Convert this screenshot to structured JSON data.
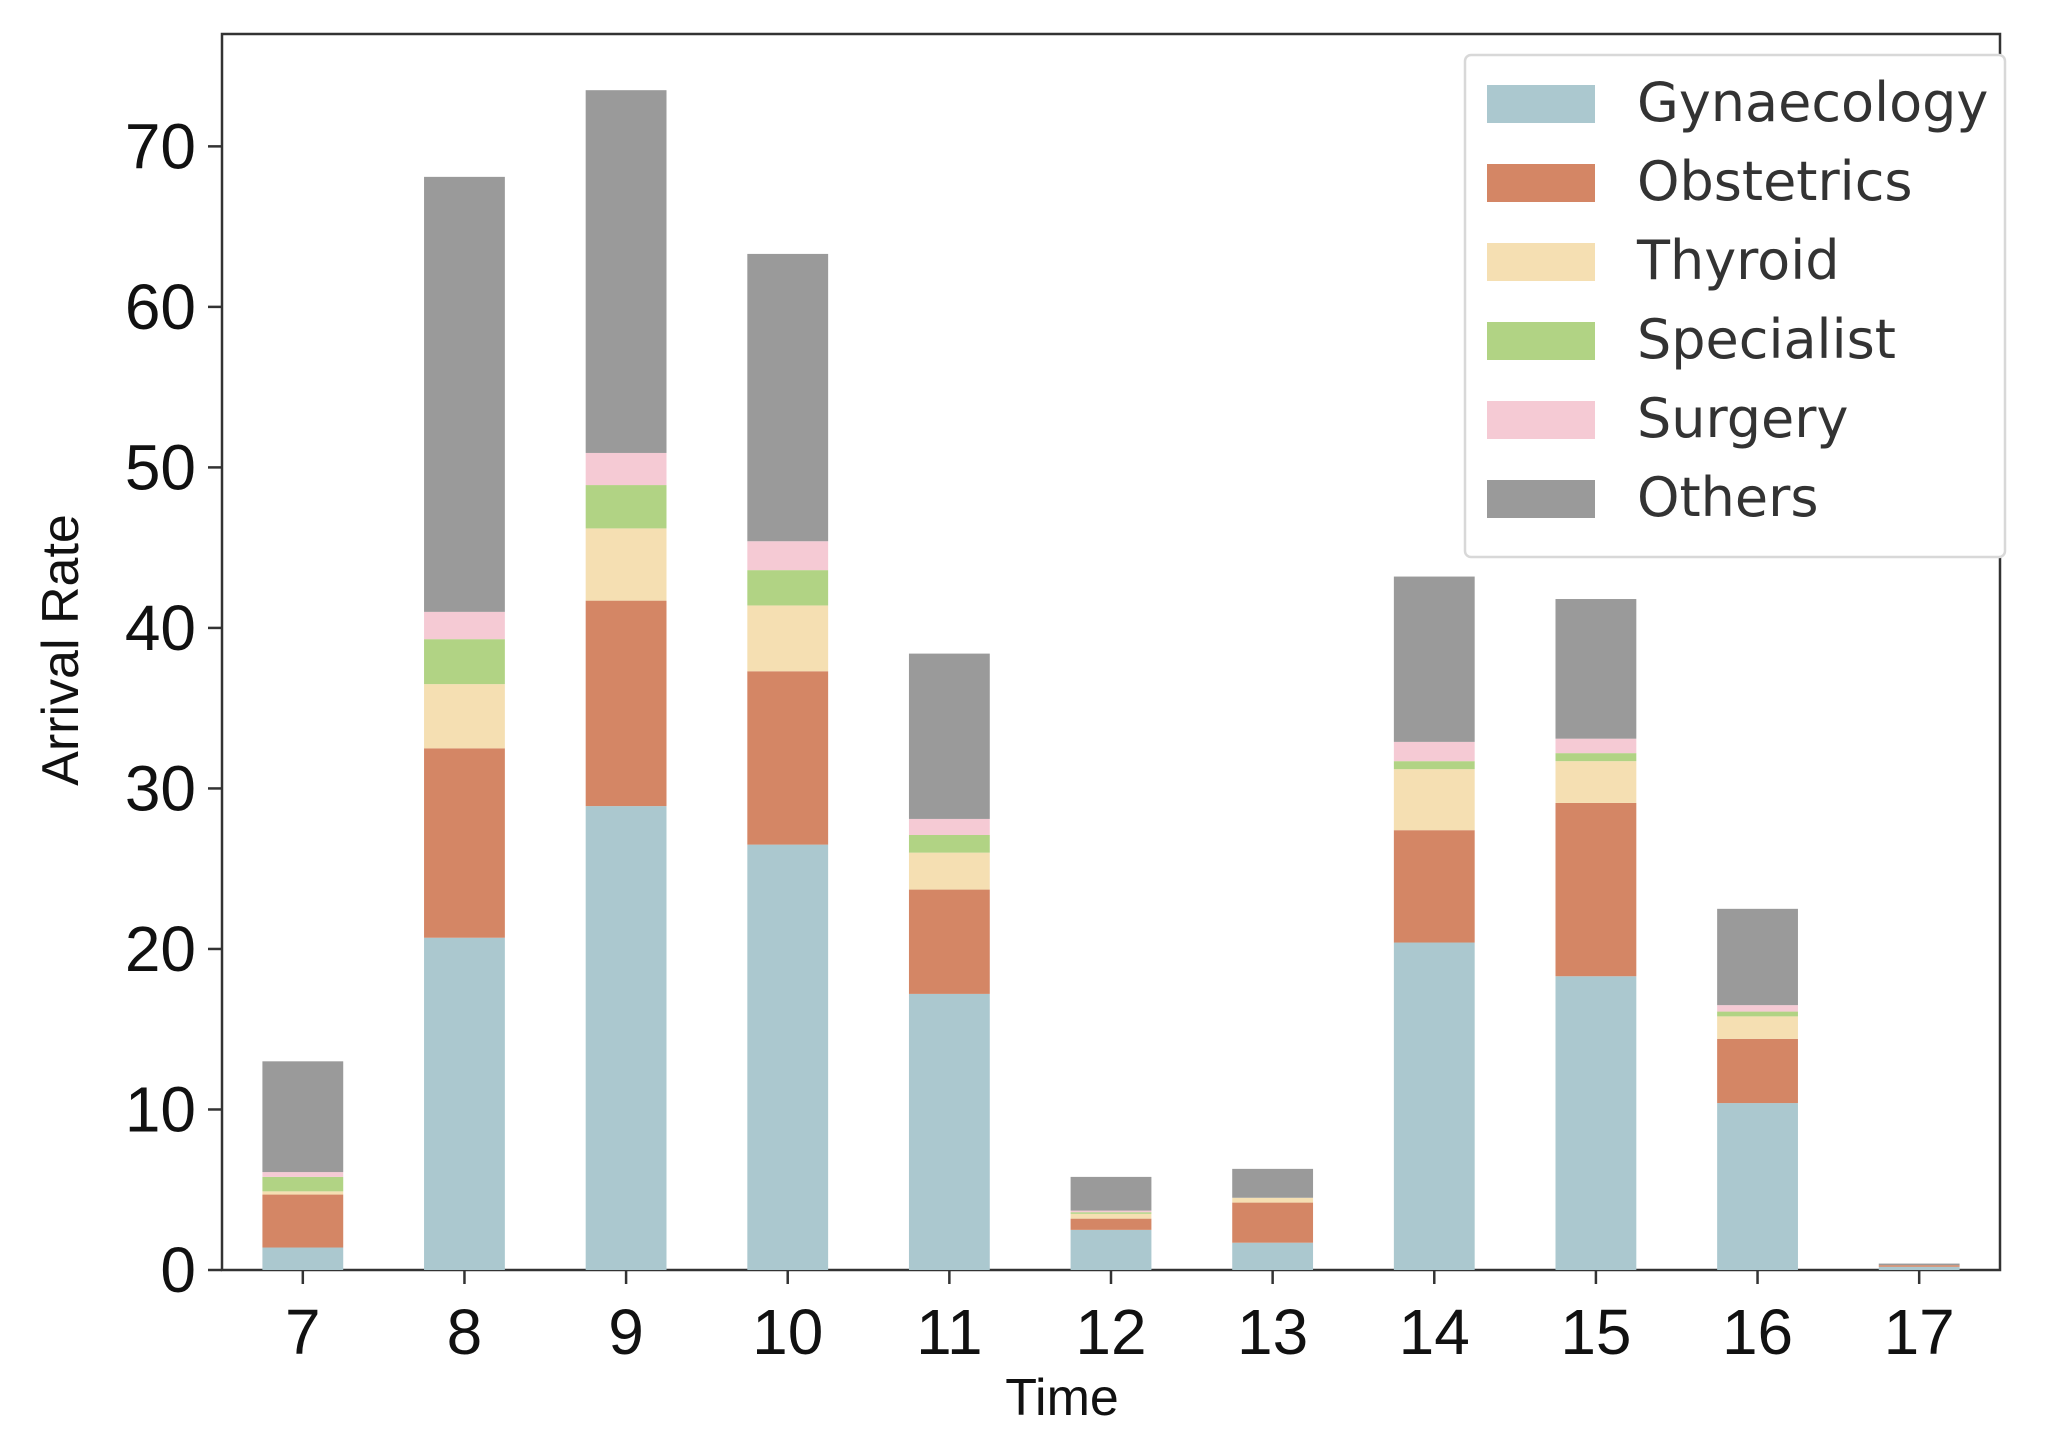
{
  "chart_data": {
    "type": "bar",
    "stacked": true,
    "title": "",
    "xlabel": "Time",
    "ylabel": "Arrival Rate",
    "ylim": [
      0,
      77
    ],
    "yticks": [
      0,
      10,
      20,
      30,
      40,
      50,
      60,
      70
    ],
    "categories": [
      "7",
      "8",
      "9",
      "10",
      "11",
      "12",
      "13",
      "14",
      "15",
      "16",
      "17"
    ],
    "legend_position": "top-right",
    "series": [
      {
        "name": "Gynaecology",
        "color": "#abc8cf",
        "values": [
          1.4,
          20.7,
          28.9,
          26.5,
          17.2,
          2.5,
          1.7,
          20.4,
          18.3,
          10.4,
          0.2
        ]
      },
      {
        "name": "Obstetrics",
        "color": "#d48665",
        "values": [
          3.3,
          11.8,
          12.8,
          10.8,
          6.5,
          0.7,
          2.5,
          7.0,
          10.8,
          4.0,
          0.1
        ]
      },
      {
        "name": "Thyroid",
        "color": "#f5dfb2",
        "values": [
          0.2,
          4.0,
          4.5,
          4.1,
          2.3,
          0.3,
          0.3,
          3.8,
          2.6,
          1.4,
          0
        ]
      },
      {
        "name": "Specialist",
        "color": "#b1d384",
        "values": [
          0.9,
          2.8,
          2.7,
          2.2,
          1.1,
          0.1,
          0,
          0.5,
          0.5,
          0.3,
          0
        ]
      },
      {
        "name": "Surgery",
        "color": "#f5cad4",
        "values": [
          0.3,
          1.7,
          2.0,
          1.8,
          1.0,
          0.1,
          0,
          1.2,
          0.9,
          0.4,
          0
        ]
      },
      {
        "name": "Others",
        "color": "#9a9a9a",
        "values": [
          6.9,
          27.1,
          22.6,
          17.9,
          10.3,
          2.1,
          1.8,
          10.3,
          8.7,
          6.0,
          0.1
        ]
      }
    ]
  }
}
